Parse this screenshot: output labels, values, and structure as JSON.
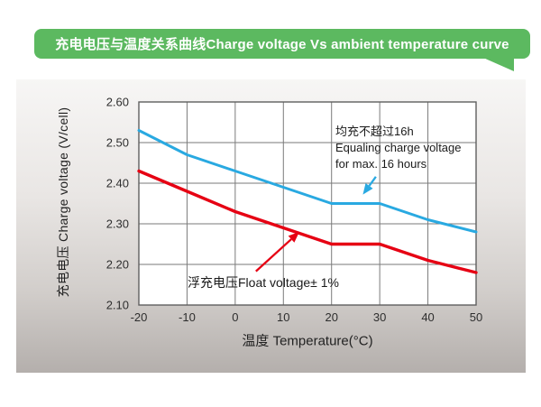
{
  "banner": {
    "title": "充电电压与温度关系曲线Charge voltage Vs ambient temperature curve",
    "color": "#5cb960"
  },
  "chart_data": {
    "type": "line",
    "title": "充电电压与温度关系曲线Charge voltage Vs ambient temperature curve",
    "xlabel": "温度 Temperature(°C)",
    "ylabel": "充电电压 Charge voltage (V/cell)",
    "xlim": [
      -20,
      50
    ],
    "ylim": [
      2.1,
      2.6
    ],
    "xticks": [
      "-20",
      "-10",
      "0",
      "10",
      "20",
      "30",
      "40",
      "50"
    ],
    "yticks": [
      "2.60",
      "2.50",
      "2.40",
      "2.30",
      "2.20",
      "2.10"
    ],
    "grid": true,
    "legend_position": "none",
    "x": [
      -20,
      -10,
      0,
      10,
      20,
      30,
      40,
      50
    ],
    "series": [
      {
        "name": "Equalizing charge voltage",
        "color": "#29a9e1",
        "values": [
          2.53,
          2.47,
          2.43,
          2.39,
          2.35,
          2.35,
          2.31,
          2.28
        ]
      },
      {
        "name": "Float voltage",
        "color": "#e60013",
        "values": [
          2.43,
          2.38,
          2.33,
          2.29,
          2.25,
          2.25,
          2.21,
          2.18
        ]
      }
    ],
    "annotations": [
      {
        "id": "equalize",
        "lines": [
          "均充不超过16h",
          "Equaling charge voltage",
          "for max. 16 hours"
        ],
        "arrow_color": "#29a9e1",
        "arrow": {
          "from": [
            29.2,
            2.416
          ],
          "to": [
            26.5,
            2.372
          ]
        }
      },
      {
        "id": "float",
        "lines": [
          "浮充电压Float voltage± 1%"
        ],
        "arrow_color": "#e60013",
        "arrow": {
          "from": [
            4.3,
            2.183
          ],
          "to": [
            13.3,
            2.28
          ]
        }
      }
    ],
    "plot_style": {
      "grid_color": "#7a7a7a",
      "border_color": "#5f5f5f",
      "tick_color": "#2e2e2e",
      "plot_bg": "#ffffff"
    }
  }
}
